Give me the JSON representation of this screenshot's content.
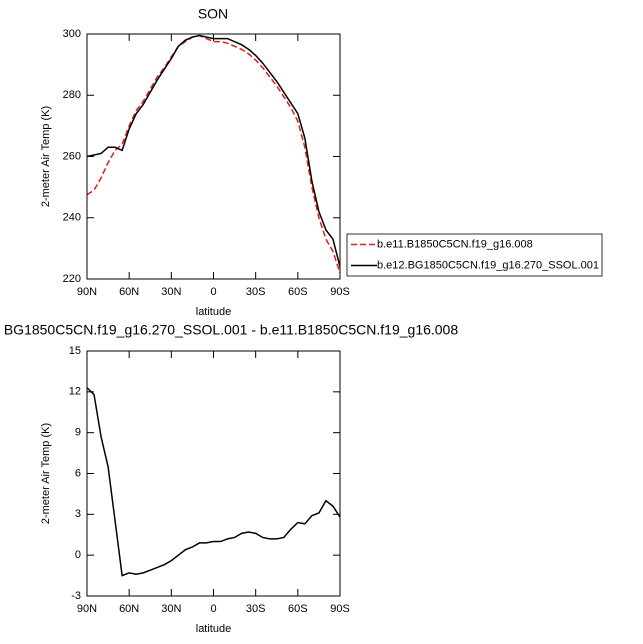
{
  "chart_data": [
    {
      "type": "line",
      "title": "SON",
      "x_label": "latitude",
      "y_label": "2-meter Air Temp (K)",
      "x": [
        90,
        85,
        80,
        75,
        70,
        65,
        60,
        55,
        50,
        45,
        40,
        35,
        30,
        25,
        20,
        15,
        10,
        5,
        0,
        -5,
        -10,
        -15,
        -20,
        -25,
        -30,
        -35,
        -40,
        -45,
        -50,
        -55,
        -60,
        -65,
        -70,
        -75,
        -80,
        -85,
        -90
      ],
      "series": [
        {
          "name": "b.e11.B1850C5CN.f19_g16.008",
          "color": "#e8191c",
          "dash": true,
          "values": [
            247.5,
            249,
            253,
            258,
            262,
            264,
            270,
            275,
            278,
            282,
            286,
            289,
            292.5,
            296,
            297.5,
            299,
            299.5,
            298.5,
            297.5,
            297.5,
            297,
            296,
            295,
            293.5,
            291.5,
            289,
            286,
            283,
            279.5,
            276,
            271.5,
            263,
            250,
            240,
            233,
            229,
            222
          ]
        },
        {
          "name": "b.e12.BG1850C5CN.f19_g16.270_SSOL.001",
          "color": "#000000",
          "dash": false,
          "values": [
            260,
            260.5,
            261,
            263,
            263,
            262,
            269,
            274,
            277,
            281,
            285,
            288.5,
            292,
            296,
            298,
            299,
            299.5,
            299,
            298.5,
            298.5,
            298.5,
            297.5,
            296.5,
            295,
            293,
            290.5,
            287.5,
            284.5,
            281,
            277.5,
            274,
            266,
            252,
            242,
            236,
            233,
            224
          ]
        }
      ],
      "xlim": [
        90,
        -90
      ],
      "xticks": [
        {
          "value": 90,
          "label": "90N"
        },
        {
          "value": 60,
          "label": "60N"
        },
        {
          "value": 30,
          "label": "30N"
        },
        0,
        {
          "value": -30,
          "label": "30S"
        },
        {
          "value": -60,
          "label": "60S"
        },
        {
          "value": -90,
          "label": "90S"
        }
      ],
      "ylim": [
        220,
        300
      ],
      "yticks": [
        220,
        240,
        260,
        280,
        300
      ]
    },
    {
      "type": "line",
      "title": "BG1850C5CN.f19_g16.270_SSOL.001 - b.e11.B1850C5CN.f19_g16.008",
      "x_label": "latitude",
      "y_label": "2-meter Air Temp (K)",
      "x": [
        90,
        85,
        80,
        75,
        70,
        65,
        60,
        55,
        50,
        45,
        40,
        35,
        30,
        25,
        20,
        15,
        10,
        5,
        0,
        -5,
        -10,
        -15,
        -20,
        -25,
        -30,
        -35,
        -40,
        -45,
        -50,
        -55,
        -60,
        -65,
        -70,
        -75,
        -80,
        -85,
        -90
      ],
      "series": [
        {
          "color": "#000000",
          "dash": false,
          "values": [
            12.3,
            11.8,
            8.7,
            6.5,
            2.5,
            -1.5,
            -1.3,
            -1.4,
            -1.3,
            -1.1,
            -0.9,
            -0.7,
            -0.4,
            0,
            0.4,
            0.6,
            0.9,
            0.9,
            1.0,
            1.0,
            1.2,
            1.3,
            1.6,
            1.7,
            1.6,
            1.3,
            1.2,
            1.2,
            1.3,
            1.9,
            2.4,
            2.3,
            2.9,
            3.1,
            4.0,
            3.6,
            2.8
          ]
        }
      ],
      "xlim": [
        90,
        -90
      ],
      "xticks": [
        {
          "value": 90,
          "label": "90N"
        },
        {
          "value": 60,
          "label": "60N"
        },
        {
          "value": 30,
          "label": "30N"
        },
        0,
        {
          "value": -30,
          "label": "30S"
        },
        {
          "value": -60,
          "label": "60S"
        },
        {
          "value": -90,
          "label": "90S"
        }
      ],
      "ylim": [
        -3,
        15
      ],
      "yticks": [
        -3,
        0,
        3,
        6,
        9,
        12,
        15
      ]
    }
  ]
}
